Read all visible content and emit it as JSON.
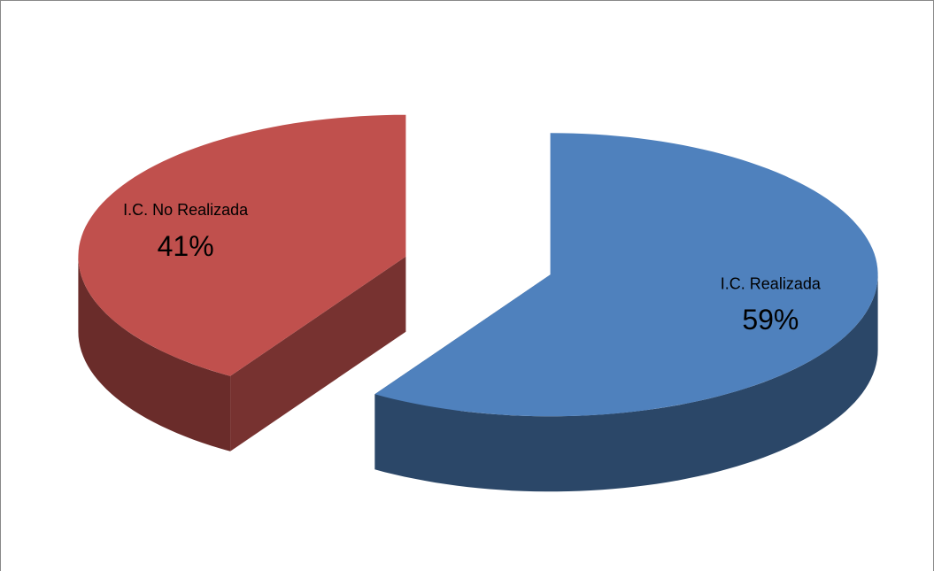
{
  "chart_data": {
    "type": "pie",
    "categories": [
      "I.C. Realizada",
      "I.C. No Realizada"
    ],
    "values": [
      59,
      41
    ],
    "value_labels": [
      "59%",
      "41%"
    ],
    "colors": [
      "#4f81bd",
      "#c0504d"
    ]
  }
}
